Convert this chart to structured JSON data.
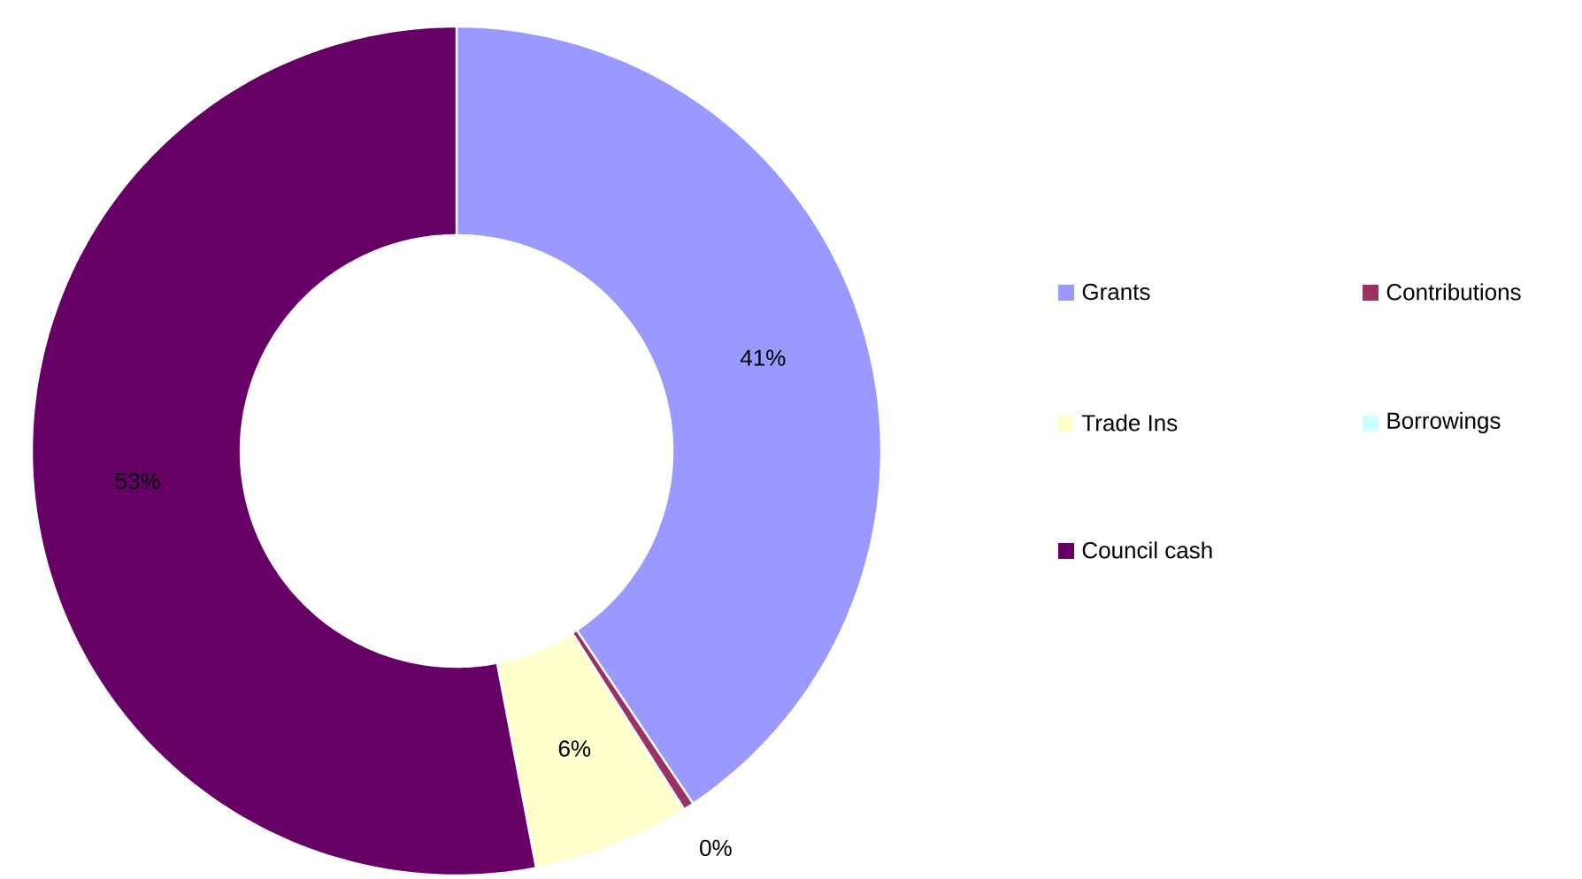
{
  "chart_data": {
    "type": "donut",
    "categories": [
      "Grants",
      "Contributions",
      "Trade Ins",
      "Borrowings",
      "Council cash"
    ],
    "values": [
      40.6,
      0.4,
      6,
      0,
      53
    ],
    "value_labels": [
      "41%",
      "0%",
      "6%",
      null,
      "53%"
    ],
    "colors": [
      "#9999ff",
      "#993366",
      "#ffffcc",
      "#ccffff",
      "#660066"
    ],
    "legend": "right"
  }
}
